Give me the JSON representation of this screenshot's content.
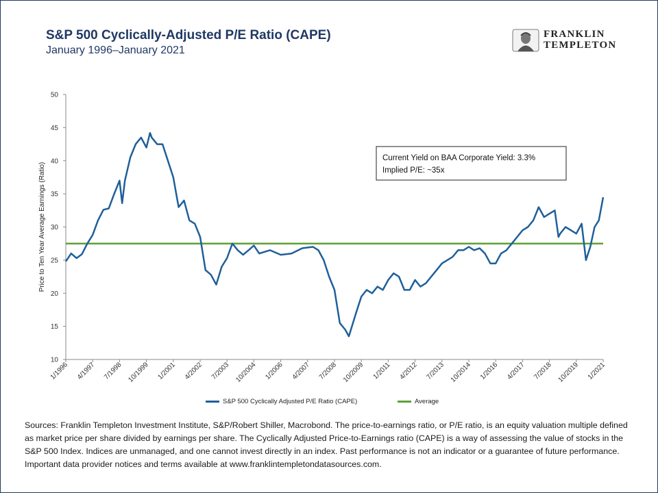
{
  "header": {
    "title": "S&P 500 Cyclically-Adjusted  P/E Ratio (CAPE)",
    "subtitle": "January 1996–January 2021"
  },
  "logo": {
    "line1": "FRANKLIN",
    "line2": "TEMPLETON"
  },
  "annotation": {
    "line1": "Current Yield on BAA Corporate Yield: 3.3%",
    "line2": "Implied P/E: ~35x"
  },
  "sources": "Sources: Franklin Templeton Investment Institute,  S&P/Robert Shiller, Macrobond. The price-to-earnings ratio, or P/E ratio, is an equity valuation multiple defined as market price per share divided by earnings per share. The Cyclically Adjusted Price-to-Earnings ratio (CAPE) is a way of assessing the value of stocks in the S&P 500 Index. Indices are unmanaged, and one cannot invest directly in an index. Past performance is not an indicator or a guarantee of future performance. Important data provider notices and terms available at www.franklintempletondatasources.com.",
  "colors": {
    "cape": "#1f5f99",
    "average": "#5ea033",
    "title": "#1f3864"
  },
  "chart_data": {
    "type": "line",
    "title": "S&P 500 Cyclically-Adjusted  P/E Ratio (CAPE)",
    "ylabel": "Price to Ten Year Average Earnings (Ratio)",
    "xlabel": "",
    "ylim": [
      10,
      50
    ],
    "yticks": [
      10,
      15,
      20,
      25,
      30,
      35,
      40,
      45,
      50
    ],
    "xticks": [
      "1/1996",
      "4/1997",
      "7/1998",
      "10/1999",
      "1/2001",
      "4/2002",
      "7/2003",
      "10/2004",
      "1/2006",
      "4/2007",
      "7/2008",
      "10/2009",
      "1/2011",
      "4/2012",
      "7/2013",
      "10/2014",
      "1/2016",
      "4/2017",
      "7/2018",
      "10/2019",
      "1/2021"
    ],
    "grid": false,
    "legend_position": "bottom",
    "series": [
      {
        "name": "S&P 500 Cyclically Adjusted P/E Ratio (CAPE)",
        "x": [
          1996.0,
          1996.25,
          1996.5,
          1996.75,
          1997.0,
          1997.25,
          1997.5,
          1997.75,
          1998.0,
          1998.25,
          1998.5,
          1998.62,
          1998.75,
          1999.0,
          1999.25,
          1999.5,
          1999.75,
          1999.92,
          2000.0,
          2000.25,
          2000.5,
          2000.75,
          2001.0,
          2001.25,
          2001.5,
          2001.75,
          2002.0,
          2002.25,
          2002.5,
          2002.75,
          2003.0,
          2003.25,
          2003.5,
          2003.75,
          2004.0,
          2004.25,
          2004.5,
          2004.75,
          2005.0,
          2005.5,
          2006.0,
          2006.5,
          2007.0,
          2007.5,
          2007.75,
          2008.0,
          2008.25,
          2008.5,
          2008.75,
          2009.0,
          2009.17,
          2009.5,
          2009.75,
          2010.0,
          2010.25,
          2010.5,
          2010.75,
          2011.0,
          2011.25,
          2011.5,
          2011.75,
          2012.0,
          2012.25,
          2012.5,
          2012.75,
          2013.0,
          2013.25,
          2013.5,
          2013.75,
          2014.0,
          2014.25,
          2014.5,
          2014.75,
          2015.0,
          2015.25,
          2015.5,
          2015.75,
          2016.0,
          2016.25,
          2016.5,
          2016.75,
          2017.0,
          2017.25,
          2017.5,
          2017.75,
          2018.0,
          2018.25,
          2018.5,
          2018.75,
          2018.92,
          2019.0,
          2019.25,
          2019.5,
          2019.75,
          2020.0,
          2020.2,
          2020.4,
          2020.6,
          2020.8,
          2021.0
        ],
        "values": [
          24.8,
          26.0,
          25.3,
          25.9,
          27.5,
          28.8,
          31.0,
          32.6,
          32.8,
          35.0,
          37.0,
          33.6,
          37.0,
          40.5,
          42.5,
          43.5,
          42.0,
          44.2,
          43.5,
          42.5,
          42.5,
          40.0,
          37.5,
          33.0,
          34.0,
          31.0,
          30.5,
          28.5,
          23.5,
          22.8,
          21.3,
          24.0,
          25.3,
          27.5,
          26.5,
          25.8,
          26.5,
          27.2,
          26.0,
          26.5,
          25.8,
          26.0,
          26.8,
          27.0,
          26.5,
          25.0,
          22.5,
          20.5,
          15.5,
          14.5,
          13.5,
          17.0,
          19.5,
          20.5,
          20.0,
          21.0,
          20.5,
          22.0,
          23.0,
          22.5,
          20.5,
          20.5,
          22.0,
          21.0,
          21.5,
          22.5,
          23.5,
          24.5,
          25.0,
          25.5,
          26.5,
          26.5,
          27.0,
          26.5,
          26.8,
          26.0,
          24.5,
          24.5,
          26.0,
          26.5,
          27.5,
          28.5,
          29.5,
          30.0,
          31.0,
          33.0,
          31.5,
          32.0,
          32.5,
          28.5,
          29.0,
          30.0,
          29.5,
          29.0,
          30.5,
          25.0,
          27.0,
          30.0,
          31.0,
          34.5
        ]
      },
      {
        "name": "Average",
        "values": [
          27.5
        ]
      }
    ]
  }
}
